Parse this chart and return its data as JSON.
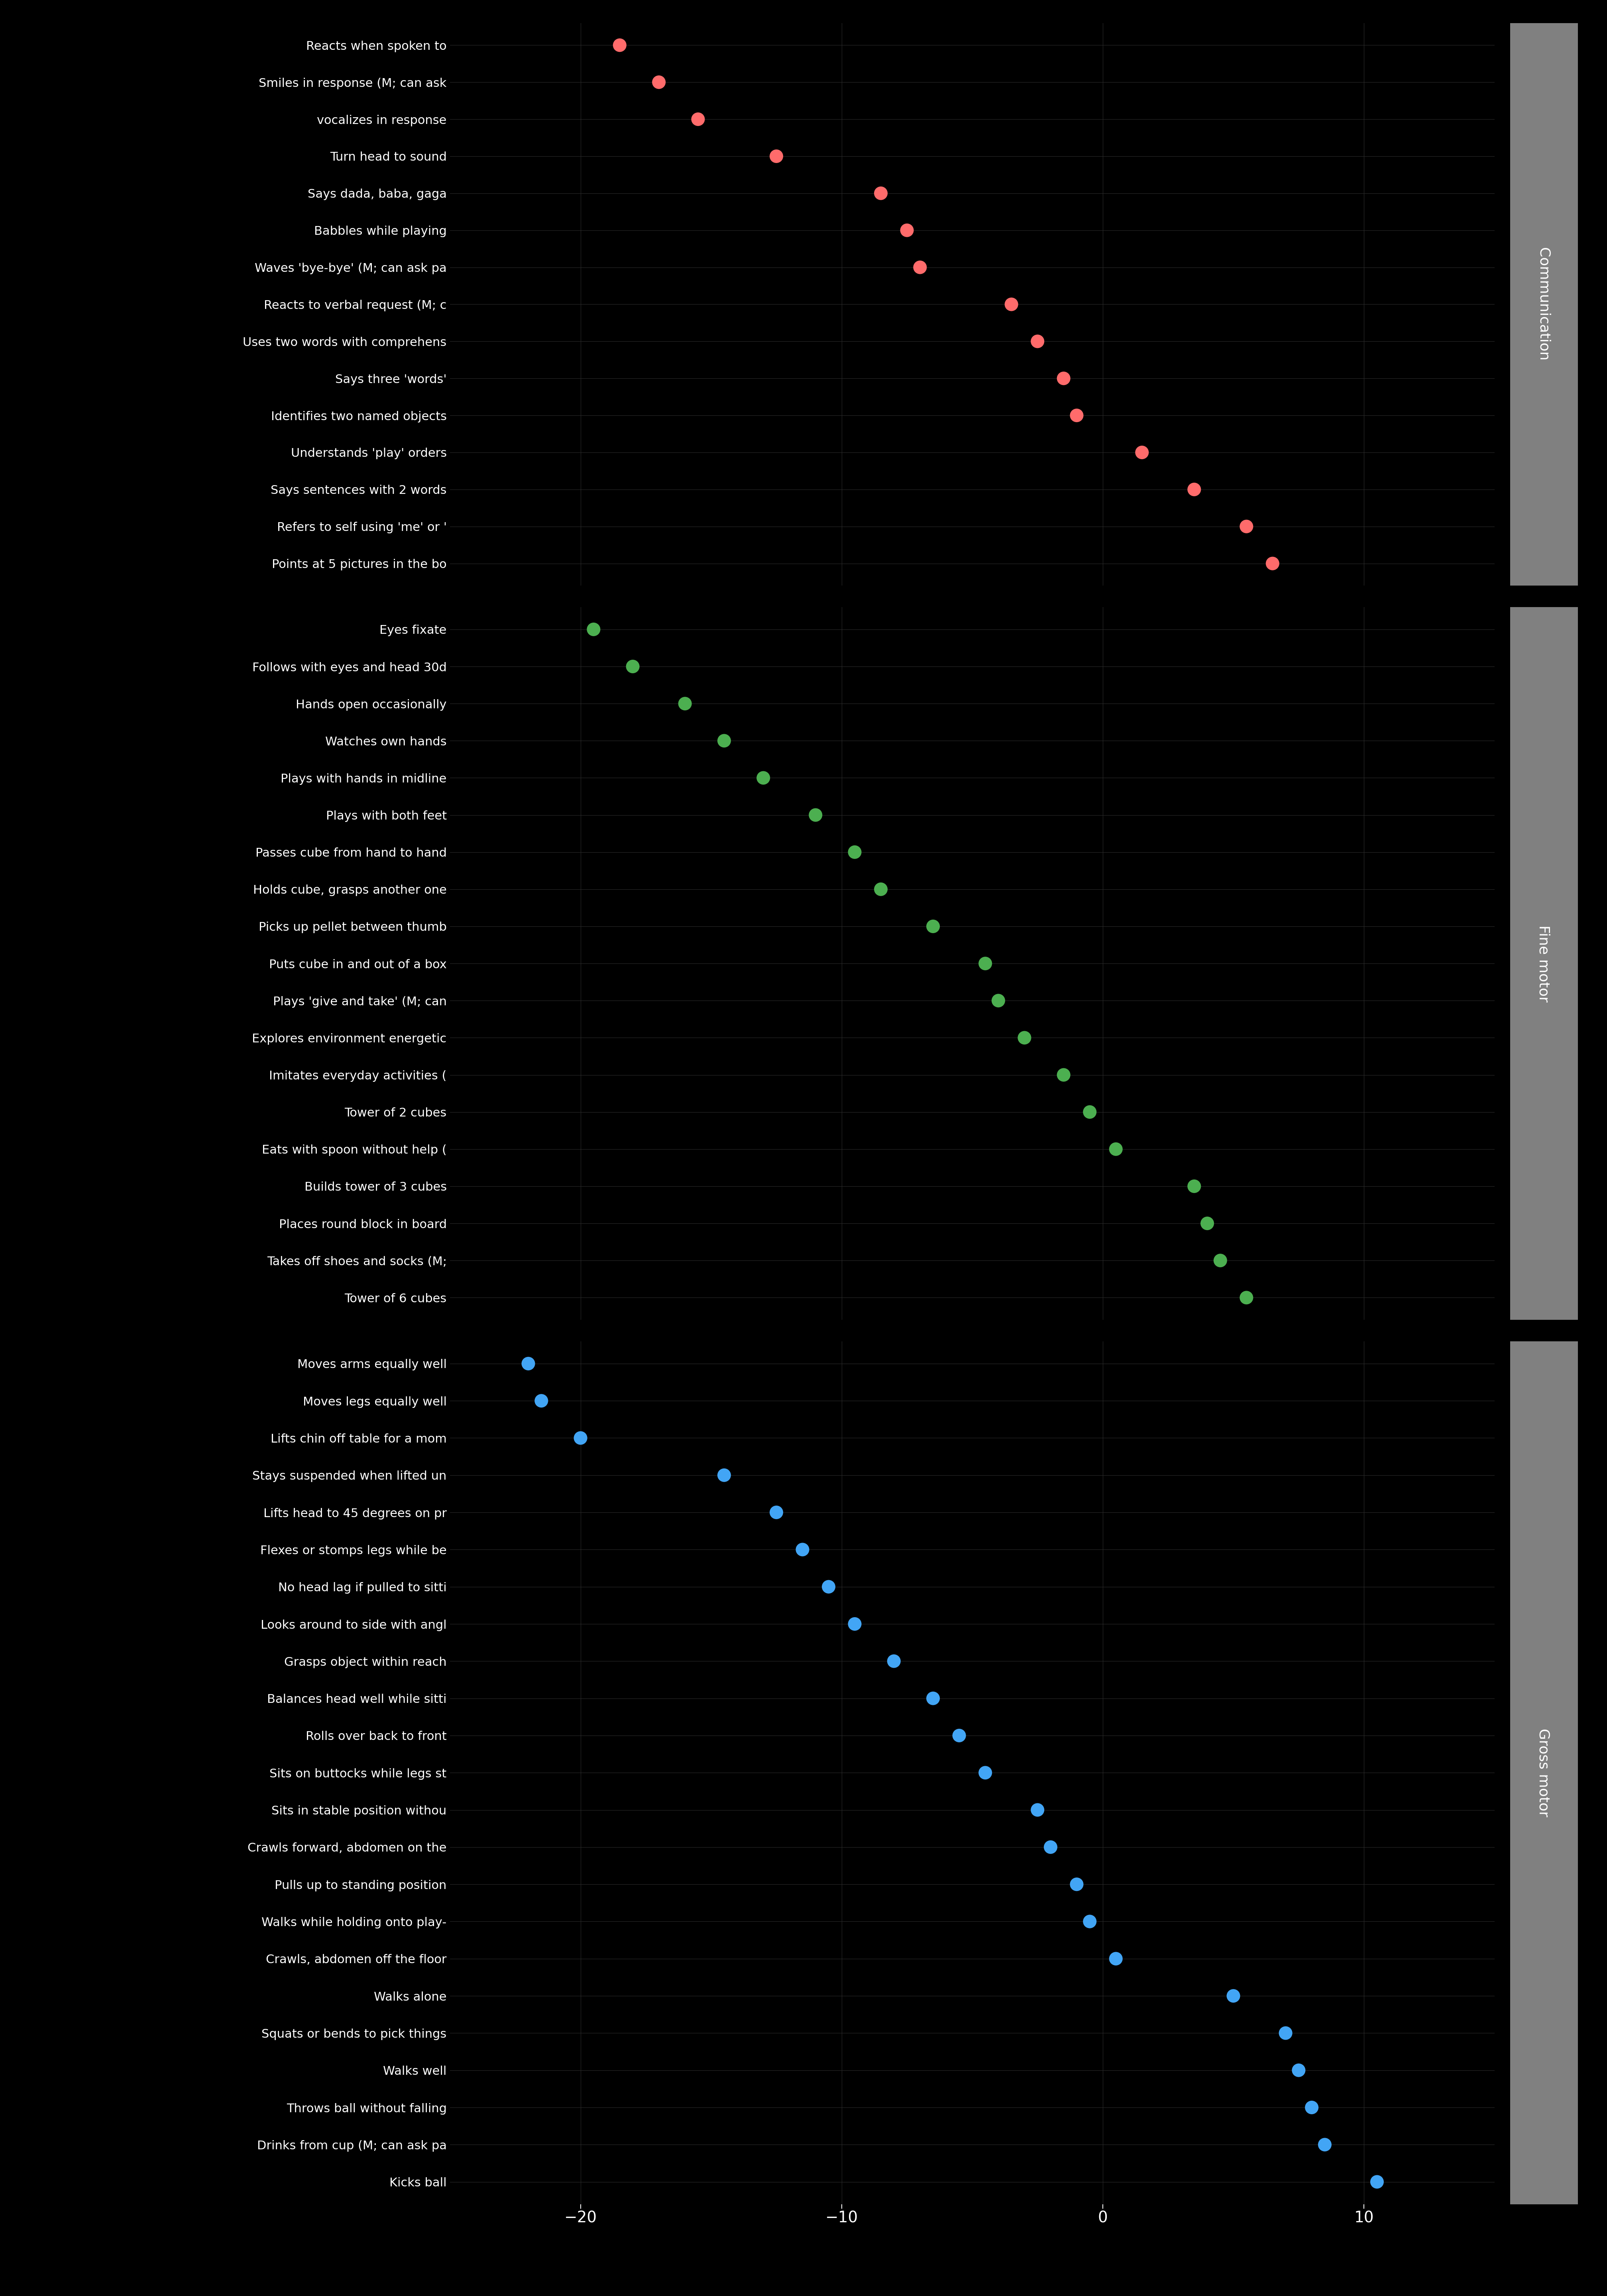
{
  "background_color": "#000000",
  "text_color": "#ffffff",
  "dot_size": 600,
  "xlim": [
    -25,
    15
  ],
  "xticks": [
    -20,
    -10,
    0,
    10
  ],
  "communication": {
    "labels": [
      "Reacts when spoken to",
      "Smiles in response (M; can ask",
      "vocalizes in response",
      "Turn head to sound",
      "Says dada, baba, gaga",
      "Babbles while playing",
      "Waves 'bye-bye' (M; can ask pa",
      "Reacts to verbal request (M; c",
      "Uses two words with comprehens",
      "Says three 'words'",
      "Identifies two named objects",
      "Understands 'play' orders",
      "Says sentences with 2 words",
      "Refers to self using 'me' or '",
      "Points at 5 pictures in the bo"
    ],
    "values": [
      -18.5,
      -17.0,
      -15.5,
      -12.5,
      -8.5,
      -7.5,
      -7.0,
      -3.5,
      -2.5,
      -1.5,
      -1.0,
      1.5,
      3.5,
      5.5,
      6.5
    ],
    "color": "#FF6B6B",
    "section_label": "Communication"
  },
  "fine_motor": {
    "labels": [
      "Eyes fixate",
      "Follows with eyes and head 30d",
      "Hands open occasionally",
      "Watches own hands",
      "Plays with hands in midline",
      "Plays with both feet",
      "Passes cube from hand to hand",
      "Holds cube, grasps another one",
      "Picks up pellet between thumb",
      "Puts cube in and out of a box",
      "Plays 'give and take' (M; can",
      "Explores environment energetic",
      "Imitates everyday activities (",
      "Tower of 2 cubes",
      "Eats with spoon without help (",
      "Builds tower of 3 cubes",
      "Places round block in board",
      "Takes off shoes and socks (M;",
      "Tower of 6 cubes"
    ],
    "values": [
      -19.5,
      -18.0,
      -16.0,
      -14.5,
      -13.0,
      -11.0,
      -9.5,
      -8.5,
      -6.5,
      -4.5,
      -4.0,
      -3.0,
      -1.5,
      -0.5,
      0.5,
      3.5,
      4.0,
      4.5,
      5.5
    ],
    "color": "#4CAF50",
    "section_label": "Fine motor"
  },
  "gross_motor": {
    "labels": [
      "Moves arms equally well",
      "Moves legs equally well",
      "Lifts chin off table for a mom",
      "Stays suspended when lifted un",
      "Lifts head to 45 degrees on pr",
      "Flexes or stomps legs while be",
      "No head lag if pulled to sitti",
      "Looks around to side with angl",
      "Grasps object within reach",
      "Balances head well while sitti",
      "Rolls over back to front",
      "Sits on buttocks while legs st",
      "Sits in stable position withou",
      "Crawls forward, abdomen on the",
      "Pulls up to standing position",
      "Walks while holding onto play-",
      "Crawls, abdomen off the floor",
      "Walks alone",
      "Squats or bends to pick things",
      "Walks well",
      "Throws ball without falling",
      "Drinks from cup (M; can ask pa",
      "Kicks ball"
    ],
    "values": [
      -22.0,
      -21.5,
      -20.0,
      -14.5,
      -12.5,
      -11.5,
      -10.5,
      -9.5,
      -8.0,
      -6.5,
      -5.5,
      -4.5,
      -2.5,
      -2.0,
      -1.0,
      -0.5,
      0.5,
      5.0,
      7.0,
      7.5,
      8.0,
      8.5,
      10.5
    ],
    "color": "#42A5F5",
    "section_label": "Gross motor"
  },
  "grid_color": "#2a2a2a",
  "section_bg_color": "#808080"
}
